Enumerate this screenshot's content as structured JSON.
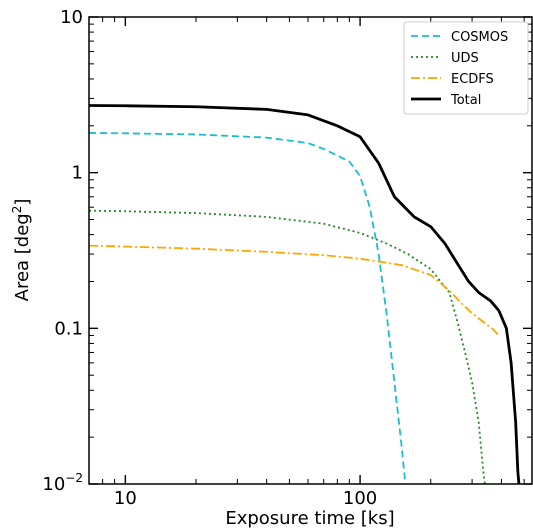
{
  "chart_data": {
    "type": "line",
    "xlabel": "Exposure time [ks]",
    "ylabel": "Area [deg",
    "ylabel_sup": "2",
    "ylabel_close": "]",
    "xscale": "log",
    "yscale": "log",
    "xlim": [
      7,
      540
    ],
    "ylim": [
      0.01,
      10
    ],
    "x_ticks": [
      {
        "value": 10,
        "label": "10"
      },
      {
        "value": 100,
        "label": "100"
      }
    ],
    "y_ticks": [
      {
        "value": 0.01,
        "label": "10",
        "sup": "−2"
      },
      {
        "value": 0.1,
        "label": "0.1"
      },
      {
        "value": 1,
        "label": "1"
      },
      {
        "value": 10,
        "label": "10"
      }
    ],
    "grid": false,
    "legend_position": "top-right",
    "series": [
      {
        "name": "COSMOS",
        "color": "#17becf",
        "dash": "dashed",
        "points": [
          [
            7,
            1.8
          ],
          [
            10,
            1.79
          ],
          [
            20,
            1.76
          ],
          [
            40,
            1.68
          ],
          [
            60,
            1.55
          ],
          [
            70,
            1.42
          ],
          [
            90,
            1.18
          ],
          [
            100,
            0.95
          ],
          [
            110,
            0.6
          ],
          [
            120,
            0.3
          ],
          [
            130,
            0.12
          ],
          [
            140,
            0.045
          ],
          [
            150,
            0.018
          ],
          [
            156,
            0.01
          ]
        ]
      },
      {
        "name": "UDS",
        "color": "#228b22",
        "dash": "dotted",
        "points": [
          [
            7,
            0.57
          ],
          [
            10,
            0.565
          ],
          [
            20,
            0.55
          ],
          [
            40,
            0.52
          ],
          [
            70,
            0.47
          ],
          [
            100,
            0.41
          ],
          [
            130,
            0.35
          ],
          [
            160,
            0.3
          ],
          [
            200,
            0.24
          ],
          [
            240,
            0.17
          ],
          [
            260,
            0.11
          ],
          [
            280,
            0.07
          ],
          [
            300,
            0.045
          ],
          [
            320,
            0.025
          ],
          [
            335,
            0.012
          ],
          [
            340,
            0.01
          ]
        ]
      },
      {
        "name": "ECDFS",
        "color": "#ffa500",
        "dash": "dashdot",
        "points": [
          [
            7,
            0.34
          ],
          [
            10,
            0.335
          ],
          [
            20,
            0.325
          ],
          [
            40,
            0.31
          ],
          [
            70,
            0.295
          ],
          [
            100,
            0.28
          ],
          [
            150,
            0.255
          ],
          [
            200,
            0.22
          ],
          [
            240,
            0.175
          ],
          [
            270,
            0.145
          ],
          [
            300,
            0.125
          ],
          [
            340,
            0.108
          ],
          [
            370,
            0.098
          ],
          [
            390,
            0.09
          ]
        ]
      },
      {
        "name": "Total",
        "color": "#000000",
        "dash": "solid",
        "points": [
          [
            7,
            2.7
          ],
          [
            10,
            2.69
          ],
          [
            20,
            2.65
          ],
          [
            40,
            2.55
          ],
          [
            60,
            2.35
          ],
          [
            80,
            2.0
          ],
          [
            100,
            1.7
          ],
          [
            120,
            1.15
          ],
          [
            140,
            0.7
          ],
          [
            170,
            0.52
          ],
          [
            200,
            0.45
          ],
          [
            230,
            0.35
          ],
          [
            260,
            0.26
          ],
          [
            290,
            0.2
          ],
          [
            320,
            0.17
          ],
          [
            360,
            0.15
          ],
          [
            390,
            0.13
          ],
          [
            420,
            0.1
          ],
          [
            440,
            0.06
          ],
          [
            460,
            0.025
          ],
          [
            470,
            0.012
          ],
          [
            475,
            0.01
          ]
        ]
      }
    ]
  }
}
